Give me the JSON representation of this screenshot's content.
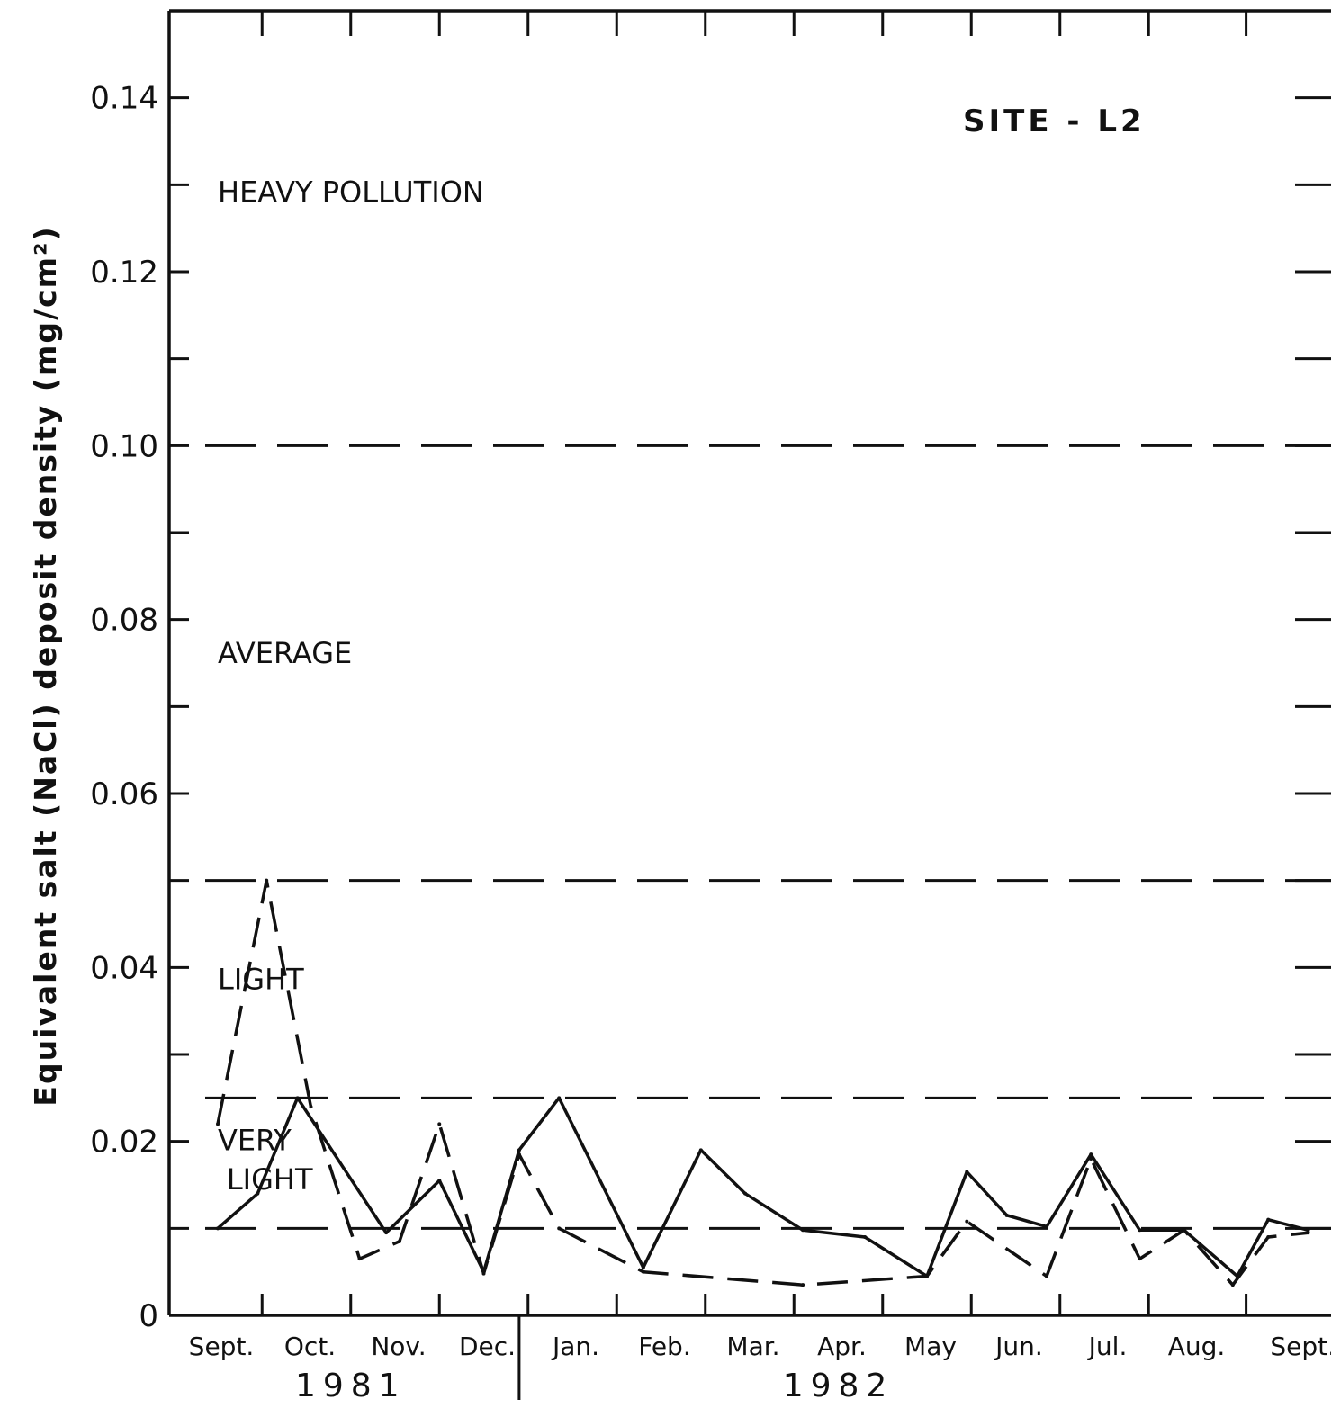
{
  "chart_data": {
    "type": "line",
    "title": "SITE  -  L2",
    "ylabel": "Equivalent  salt (NaCl) deposit density (mg/cm²)",
    "xlabel": "",
    "ylim": [
      0,
      0.15
    ],
    "yticks": [
      0,
      0.01,
      0.02,
      0.03,
      0.04,
      0.05,
      0.06,
      0.07,
      0.08,
      0.09,
      0.1,
      0.11,
      0.12,
      0.13,
      0.14,
      0.15
    ],
    "ytick_labels": [
      "0",
      "0.02",
      "0.04",
      "0.06",
      "0.08",
      "0.10",
      "0.12",
      "0.14"
    ],
    "ytick_label_values": [
      0,
      0.02,
      0.04,
      0.06,
      0.08,
      0.1,
      0.12,
      0.14
    ],
    "xlim": [
      0,
      12.5
    ],
    "months": [
      "Sept.",
      "Oct.",
      "Nov.",
      "Dec.",
      "Jan.",
      "Feb.",
      "Mar.",
      "Apr.",
      "May",
      "Jun.",
      "Jul.",
      "Aug.",
      "Sept."
    ],
    "month_positions": [
      0,
      1,
      2,
      3,
      4,
      5,
      6,
      7,
      8,
      9,
      10,
      11,
      12.2
    ],
    "years": [
      {
        "label": "1981",
        "position": 1.5
      },
      {
        "label": "1982",
        "position": 7.0
      }
    ],
    "year_divider": 3.4,
    "grid": false,
    "pollution_thresholds": [
      0.01,
      0.025,
      0.05,
      0.1
    ],
    "zone_labels": [
      {
        "text": "HEAVY POLLUTION",
        "x": 0.0,
        "y": 0.128
      },
      {
        "text": "AVERAGE",
        "x": 0.0,
        "y": 0.075
      },
      {
        "text": "LIGHT",
        "x": 0.0,
        "y": 0.0375
      },
      {
        "text": "VERY",
        "x": 0.0,
        "y": 0.019
      },
      {
        "text": "LIGHT",
        "x": 0.1,
        "y": 0.0145
      }
    ],
    "series": [
      {
        "style": "solid",
        "x": [
          0,
          0.45,
          0.9,
          1.9,
          2.5,
          3.0,
          3.4,
          3.85,
          4.8,
          5.45,
          5.95,
          6.6,
          7.3,
          8.0,
          8.45,
          8.9,
          9.35,
          9.85,
          10.4,
          10.9,
          11.5,
          11.85,
          12.3
        ],
        "y": [
          0.01,
          0.014,
          0.025,
          0.0095,
          0.0155,
          0.005,
          0.019,
          0.025,
          0.0055,
          0.019,
          0.014,
          0.0098,
          0.009,
          0.0045,
          0.0165,
          0.0115,
          0.0102,
          0.0185,
          0.0098,
          0.0098,
          0.0045,
          0.011,
          0.0098
        ]
      },
      {
        "style": "dashed",
        "x": [
          0,
          0.55,
          1.05,
          1.6,
          2.05,
          2.5,
          3.0,
          3.4,
          3.85,
          4.8,
          6.6,
          8.0,
          8.45,
          9.35,
          9.85,
          10.4,
          10.9,
          11.45,
          11.85,
          12.3
        ],
        "y": [
          0.022,
          0.05,
          0.024,
          0.0065,
          0.0085,
          0.022,
          0.0048,
          0.0185,
          0.01,
          0.005,
          0.0035,
          0.0045,
          0.0108,
          0.0045,
          0.018,
          0.0065,
          0.0098,
          0.0035,
          0.009,
          0.0095
        ]
      }
    ]
  }
}
